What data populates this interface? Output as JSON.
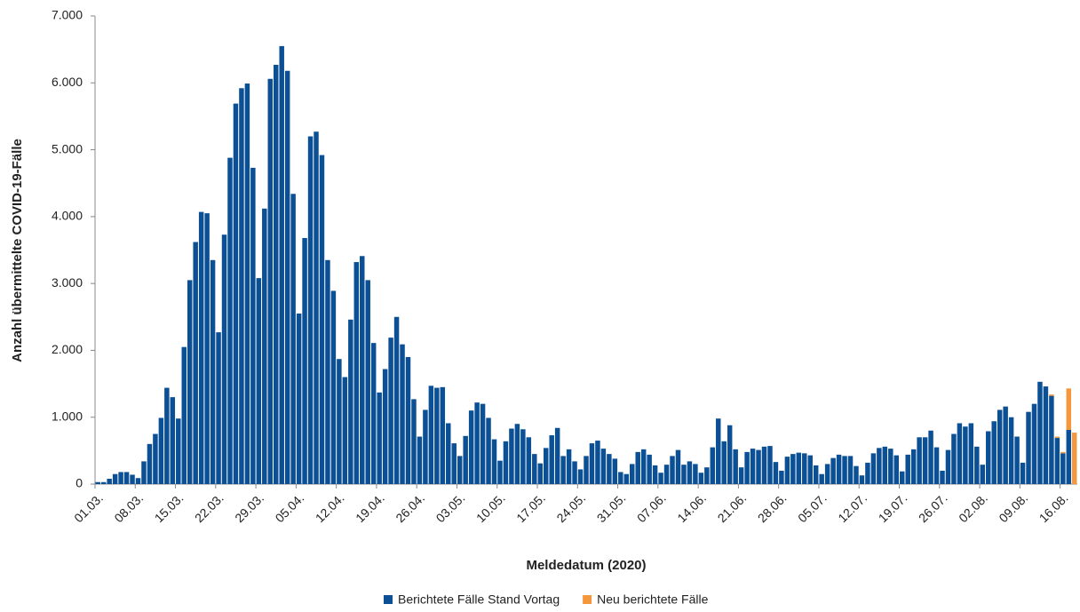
{
  "chart_data": {
    "type": "stacked-bar",
    "y_label": "Anzahl übermittelte COVID-19-Fälle",
    "x_label": "Meldedatum (2020)",
    "categories": [
      "01.03.",
      null,
      null,
      null,
      null,
      null,
      null,
      "08.03.",
      null,
      null,
      null,
      null,
      null,
      null,
      "15.03.",
      null,
      null,
      null,
      null,
      null,
      null,
      "22.03.",
      null,
      null,
      null,
      null,
      null,
      null,
      "29.03.",
      null,
      null,
      null,
      null,
      null,
      null,
      "05.04.",
      null,
      null,
      null,
      null,
      null,
      null,
      "12.04.",
      null,
      null,
      null,
      null,
      null,
      null,
      "19.04.",
      null,
      null,
      null,
      null,
      null,
      null,
      "26.04.",
      null,
      null,
      null,
      null,
      null,
      null,
      "03.05.",
      null,
      null,
      null,
      null,
      null,
      null,
      "10.05.",
      null,
      null,
      null,
      null,
      null,
      null,
      "17.05.",
      null,
      null,
      null,
      null,
      null,
      null,
      "24.05.",
      null,
      null,
      null,
      null,
      null,
      null,
      "31.05.",
      null,
      null,
      null,
      null,
      null,
      null,
      "07.06.",
      null,
      null,
      null,
      null,
      null,
      null,
      "14.06.",
      null,
      null,
      null,
      null,
      null,
      null,
      "21.06.",
      null,
      null,
      null,
      null,
      null,
      null,
      "28.06.",
      null,
      null,
      null,
      null,
      null,
      null,
      "05.07.",
      null,
      null,
      null,
      null,
      null,
      null,
      "12.07.",
      null,
      null,
      null,
      null,
      null,
      null,
      "19.07.",
      null,
      null,
      null,
      null,
      null,
      null,
      "26.07.",
      null,
      null,
      null,
      null,
      null,
      null,
      "02.08.",
      null,
      null,
      null,
      null,
      null,
      null,
      "09.08.",
      null,
      null,
      null,
      null,
      null,
      null,
      "16.08.",
      null,
      null
    ],
    "series": [
      {
        "name": "Berichtete Fälle Stand Vortag",
        "color": "#0b4f94",
        "values": [
          30,
          30,
          80,
          150,
          180,
          180,
          140,
          90,
          340,
          600,
          750,
          990,
          1440,
          1300,
          980,
          2050,
          3050,
          3620,
          4070,
          4050,
          3350,
          2270,
          3730,
          4880,
          5690,
          5920,
          5990,
          4730,
          3080,
          4120,
          6060,
          6270,
          6550,
          6180,
          4340,
          2550,
          3680,
          5200,
          5270,
          4920,
          3350,
          2890,
          1870,
          1600,
          2460,
          3320,
          3410,
          3050,
          2110,
          1370,
          1720,
          2190,
          2500,
          2090,
          1900,
          1270,
          710,
          1110,
          1470,
          1440,
          1450,
          910,
          610,
          420,
          720,
          1100,
          1220,
          1200,
          990,
          670,
          350,
          640,
          830,
          900,
          820,
          700,
          450,
          310,
          540,
          730,
          840,
          420,
          520,
          340,
          220,
          420,
          610,
          650,
          530,
          450,
          380,
          180,
          150,
          300,
          480,
          520,
          440,
          280,
          170,
          290,
          420,
          510,
          290,
          340,
          300,
          170,
          250,
          550,
          980,
          640,
          880,
          520,
          250,
          480,
          530,
          510,
          560,
          570,
          330,
          200,
          410,
          450,
          470,
          460,
          430,
          280,
          150,
          300,
          390,
          440,
          420,
          420,
          270,
          130,
          320,
          460,
          540,
          560,
          530,
          430,
          190,
          440,
          520,
          700,
          700,
          800,
          550,
          200,
          510,
          750,
          910,
          860,
          910,
          560,
          290,
          790,
          940,
          1110,
          1160,
          1000,
          710,
          320,
          1080,
          1200,
          1530,
          1460,
          1320,
          690,
          460,
          810,
          0
        ]
      },
      {
        "name": "Neu berichtete Fälle",
        "color": "#f5973d",
        "values": [
          0,
          0,
          0,
          0,
          0,
          0,
          0,
          0,
          0,
          0,
          0,
          0,
          0,
          0,
          0,
          0,
          0,
          0,
          0,
          0,
          0,
          0,
          0,
          0,
          0,
          0,
          0,
          0,
          0,
          0,
          0,
          0,
          0,
          0,
          0,
          0,
          0,
          0,
          0,
          0,
          0,
          0,
          0,
          0,
          0,
          0,
          0,
          0,
          0,
          0,
          0,
          0,
          0,
          0,
          0,
          0,
          0,
          0,
          0,
          0,
          0,
          0,
          0,
          0,
          0,
          0,
          0,
          0,
          0,
          0,
          0,
          0,
          0,
          0,
          0,
          0,
          0,
          0,
          0,
          0,
          0,
          0,
          0,
          0,
          0,
          0,
          0,
          0,
          0,
          0,
          0,
          0,
          0,
          0,
          0,
          0,
          0,
          0,
          0,
          0,
          0,
          0,
          0,
          0,
          0,
          0,
          0,
          0,
          0,
          0,
          0,
          0,
          0,
          0,
          0,
          0,
          0,
          0,
          0,
          0,
          0,
          0,
          0,
          0,
          0,
          0,
          0,
          0,
          0,
          0,
          0,
          0,
          0,
          0,
          0,
          0,
          0,
          0,
          0,
          0,
          0,
          0,
          0,
          0,
          0,
          0,
          0,
          0,
          0,
          0,
          0,
          0,
          0,
          0,
          0,
          0,
          0,
          0,
          0,
          0,
          0,
          0,
          0,
          0,
          0,
          0,
          20,
          20,
          20,
          620,
          770
        ]
      }
    ],
    "ylim": [
      0,
      7000
    ],
    "yticks": [
      0,
      {
        "value": 1000,
        "label": "1.000"
      },
      {
        "value": 2000,
        "label": "2.000"
      },
      {
        "value": 3000,
        "label": "3.000"
      },
      {
        "value": 4000,
        "label": "4.000"
      },
      {
        "value": 5000,
        "label": "5.000"
      },
      {
        "value": 6000,
        "label": "6.000"
      },
      {
        "value": 7000,
        "label": "7.000"
      }
    ],
    "grid": false,
    "legend": "bottom"
  }
}
